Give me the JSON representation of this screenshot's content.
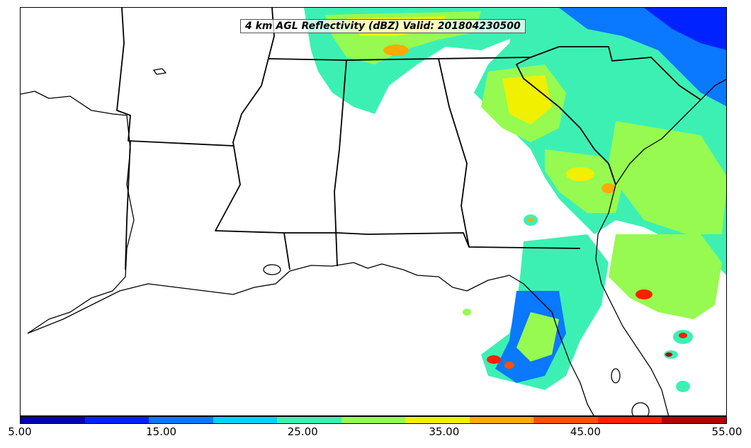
{
  "title": "4 km AGL Reflectivity (dBZ) Valid: 201804230500",
  "colorbar": {
    "colors": [
      "#0000b4",
      "#0022ff",
      "#0a78ff",
      "#00d2ff",
      "#3cf0b4",
      "#96fa50",
      "#f0f000",
      "#ffaa00",
      "#ff5000",
      "#ff2000",
      "#b40000"
    ],
    "tick_labels": [
      "5.00",
      "15.00",
      "25.00",
      "35.00",
      "45.00",
      "55.00"
    ]
  },
  "legend_colors": {
    "coastline": "#000000",
    "state_border": "#000000"
  }
}
